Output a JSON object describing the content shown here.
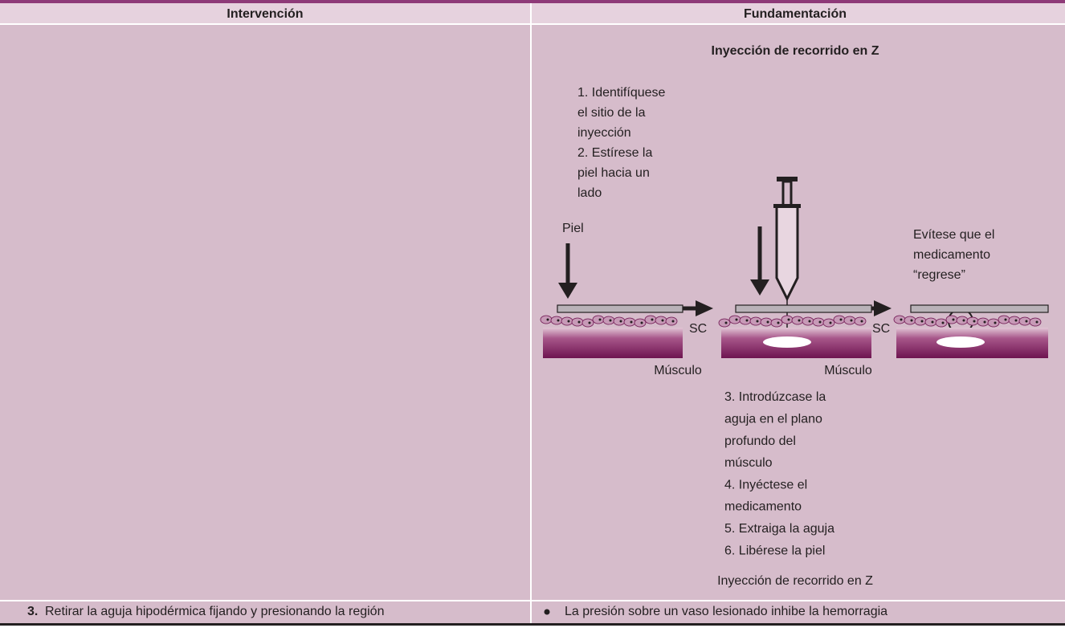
{
  "header": {
    "left": "Intervención",
    "right": "Fundamentación"
  },
  "figure": {
    "title": "Inyección de recorrido en Z",
    "steps_top": [
      "1. Identifíquese",
      "el sitio de la",
      "inyección",
      "2. Estírese la",
      "piel hacia un",
      "lado"
    ],
    "skin_label": "Piel",
    "warning": [
      "Evítese que el",
      "medicamento",
      "“regrese”"
    ],
    "layer_labels": [
      "SC",
      "SC"
    ],
    "muscle_labels": [
      "Músculo",
      "Músculo"
    ],
    "steps_bottom": [
      "3. Introdúzcase la",
      "aguja en el plano",
      "profundo del",
      "músculo",
      "4. Inyéctese el",
      "medicamento",
      "5. Extraiga la aguja",
      "6. Libérese la piel"
    ],
    "caption": "Inyección de recorrido en Z"
  },
  "row": {
    "number": "3.",
    "intervention": "Retirar la aguja hipodérmica fijando y presionando la región",
    "rationale": "La presión sobre un vaso lesionado inhibe la hemorragia"
  }
}
